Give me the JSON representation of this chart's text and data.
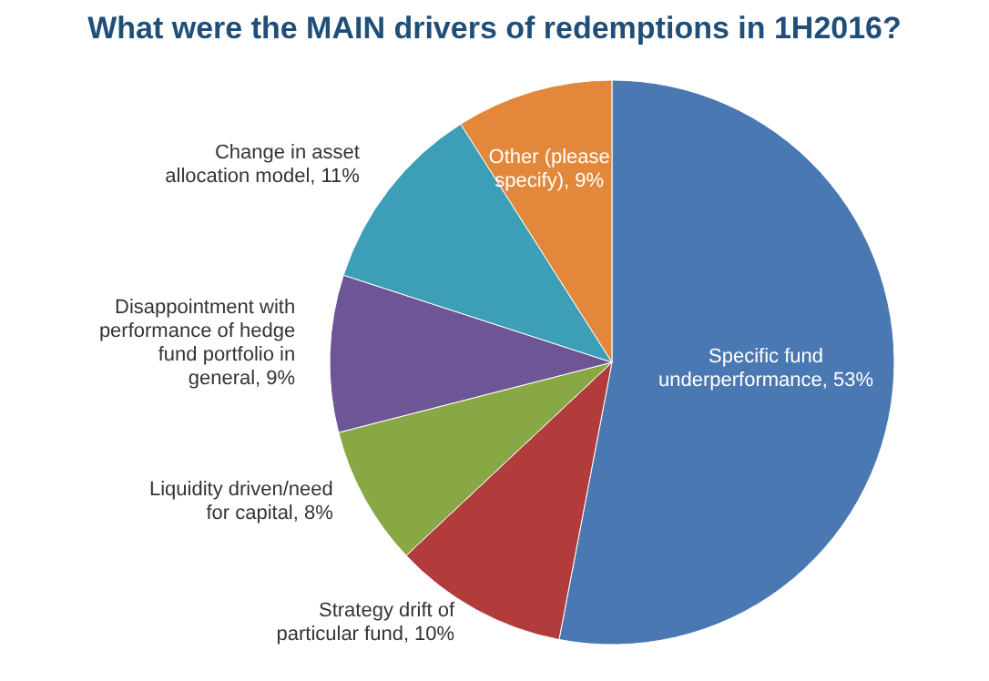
{
  "chart_data": {
    "type": "pie",
    "title": "What were the MAIN drivers of redemptions in 1H2016?",
    "categories": [
      "Specific fund underperformance",
      "Strategy drift of particular fund",
      "Liquidity driven/need for capital",
      "Disappointment with performance of hedge fund portfolio in general",
      "Change in asset allocation model",
      "Other (please specify)"
    ],
    "values": [
      53,
      10,
      8,
      9,
      11,
      9
    ],
    "value_labels": [
      "53%",
      "10%",
      "8%",
      "9%",
      "11%",
      "9%"
    ],
    "colors": [
      "#4a78b2",
      "#b23b3b",
      "#88a845",
      "#6e5596",
      "#3d9fb7",
      "#e3883b"
    ]
  }
}
